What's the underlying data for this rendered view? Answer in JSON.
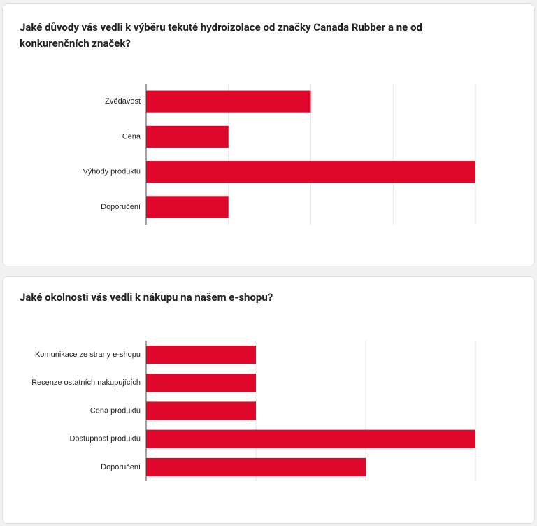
{
  "chart_data": [
    {
      "type": "bar",
      "orientation": "horizontal",
      "title": "Jaké důvody vás vedli k výběru tekuté hydroizolace od značky Canada Rubber a ne od konkurenčních značek?",
      "categories": [
        "Zvědavost",
        "Cena",
        "Výhody produktu",
        "Doporučení"
      ],
      "values": [
        2,
        1,
        4,
        1
      ],
      "color": "#e0082a",
      "xlim": [
        0,
        4
      ],
      "xticks": [
        0,
        1,
        2,
        3,
        4
      ],
      "tick_labels": false,
      "grid": true
    },
    {
      "type": "bar",
      "orientation": "horizontal",
      "title": "Jaké okolnosti vás vedli k nákupu na našem e-shopu?",
      "categories": [
        "Komunikace ze strany e-shopu",
        "Recenze ostatních nakupujících",
        "Cena produktu",
        "Dostupnost produktu",
        "Doporučení"
      ],
      "values": [
        1,
        1,
        1,
        3,
        2
      ],
      "color": "#e0082a",
      "xlim": [
        0,
        3
      ],
      "xticks": [
        0,
        1,
        2,
        3
      ],
      "tick_labels": false,
      "grid": true
    }
  ]
}
